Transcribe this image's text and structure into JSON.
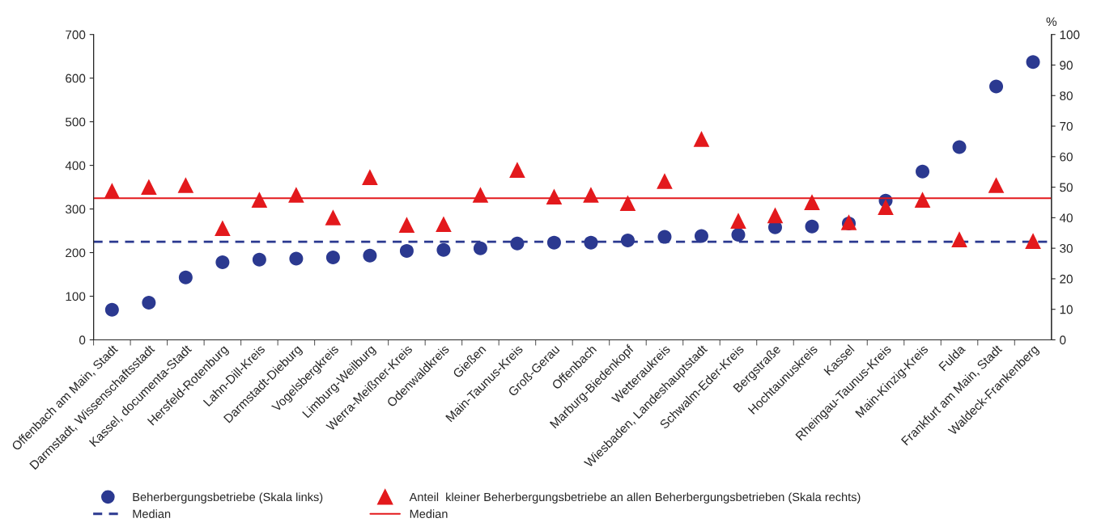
{
  "chart_data": {
    "type": "scatter",
    "categories": [
      "Offenbach am Main, Stadt",
      "Darmstadt, Wissenschaftsstadt",
      "Kassel, documenta-Stadt",
      "Hersfeld-Rotenburg",
      "Lahn-Dill-Kreis",
      "Darmstadt-Dieburg",
      "Vogelsbergkreis",
      "Limburg-Weilburg",
      "Werra-Meißner-Kreis",
      "Odenwaldkreis",
      "Gießen",
      "Main-Taunus-Kreis",
      "Groß-Gerau",
      "Offenbach",
      "Marburg-Biedenkopf",
      "Wetteraukreis",
      "Wiesbaden, Landeshauptstadt",
      "Schwalm-Eder-Kreis",
      "Bergstraße",
      "Hochtaunuskreis",
      "Kassel",
      "Rheingau-Taunus-Kreis",
      "Main-Kinzig-Kreis",
      "Fulda",
      "Frankfurt am Main, Stadt",
      "Waldeck-Frankenberg"
    ],
    "series": [
      {
        "name": "Beherbergungsbetriebe (Skala links)",
        "color": "#2b3990",
        "marker": "circle",
        "values": [
          69,
          85,
          143,
          178,
          184,
          186,
          189,
          193,
          204,
          206,
          210,
          221,
          223,
          223,
          228,
          236,
          238,
          241,
          258,
          260,
          267,
          319,
          386,
          442,
          581,
          637
        ]
      },
      {
        "name": "Anteil  kleiner Beherbergungsbetriebe an allen Beherbergungsbetrieben (Skala rechts)",
        "color": "#e3191c",
        "marker": "triangle",
        "axis": "y2",
        "values": [
          48.8,
          50.1,
          50.7,
          36.6,
          45.9,
          47.5,
          40.1,
          53.3,
          37.7,
          37.9,
          47.5,
          55.7,
          46.9,
          47.5,
          44.8,
          52.0,
          65.8,
          39.0,
          40.8,
          45.1,
          38.5,
          43.5,
          45.9,
          32.9,
          50.7,
          32.4
        ]
      }
    ],
    "ylim": [
      0,
      700
    ],
    "yticks": [
      0,
      100,
      200,
      300,
      400,
      500,
      600,
      700
    ],
    "y2lim": [
      0,
      100
    ],
    "y2ticks": [
      0,
      10,
      20,
      30,
      40,
      50,
      60,
      70,
      80,
      90,
      100
    ],
    "y2label": "%",
    "ref_lines": [
      {
        "axis": "y",
        "value": 225,
        "label": "Median",
        "color": "#2b3990",
        "line_style": "dashed"
      },
      {
        "axis": "y2",
        "value": 46.4,
        "label": "Median",
        "color": "#e3191c",
        "line_style": "solid"
      }
    ],
    "grid": false,
    "legend": "bottom"
  }
}
